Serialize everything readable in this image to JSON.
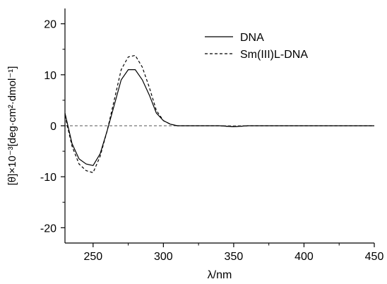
{
  "chart_data": {
    "type": "line",
    "xlabel": "λ/nm",
    "ylabel": "[θ]×10⁻³[deg·cm²·dmol⁻¹]",
    "xlim": [
      230,
      450
    ],
    "ylim": [
      -23,
      23
    ],
    "x_ticks": [
      250,
      300,
      350,
      400,
      450
    ],
    "x_tick_labels": [
      "250",
      "300",
      "350",
      "400",
      "450"
    ],
    "y_ticks": [
      -20,
      -10,
      0,
      10,
      20
    ],
    "y_tick_labels": [
      "-20",
      "-10",
      "0",
      "10",
      "20"
    ],
    "grid": false,
    "legend_position": "top-right",
    "reference_line": {
      "y": 0,
      "style": "dashed"
    },
    "series": [
      {
        "name": "DNA",
        "style": "solid",
        "x": [
          230,
          235,
          240,
          245,
          250,
          255,
          260,
          265,
          270,
          275,
          280,
          285,
          290,
          295,
          300,
          305,
          310,
          320,
          330,
          340,
          350,
          360,
          370,
          380,
          390,
          400,
          410,
          420,
          430,
          440,
          450
        ],
        "y": [
          2.5,
          -3.5,
          -6.5,
          -7.5,
          -7.8,
          -5.5,
          -1.0,
          4.0,
          9.0,
          11.0,
          11.0,
          9.0,
          6.0,
          2.5,
          1.0,
          0.3,
          0.0,
          0.0,
          0.0,
          0.0,
          -0.2,
          0.0,
          0.0,
          0.0,
          0.0,
          0.0,
          0.0,
          0.0,
          0.0,
          0.0,
          0.0
        ]
      },
      {
        "name": "Sm(III)L-DNA",
        "style": "dashed",
        "x": [
          230,
          235,
          240,
          245,
          250,
          255,
          260,
          265,
          270,
          275,
          280,
          285,
          290,
          295,
          300,
          305,
          310,
          320,
          330,
          340,
          350,
          360,
          370,
          380,
          390,
          400,
          410,
          420,
          430,
          440,
          450
        ],
        "y": [
          2.0,
          -4.0,
          -7.5,
          -8.8,
          -9.2,
          -6.0,
          -1.0,
          5.0,
          11.0,
          13.5,
          13.8,
          11.5,
          7.5,
          3.0,
          1.0,
          0.3,
          0.0,
          0.0,
          0.0,
          0.0,
          -0.2,
          0.0,
          0.0,
          0.0,
          0.0,
          0.0,
          0.0,
          0.0,
          0.0,
          0.0,
          0.0
        ]
      }
    ]
  }
}
